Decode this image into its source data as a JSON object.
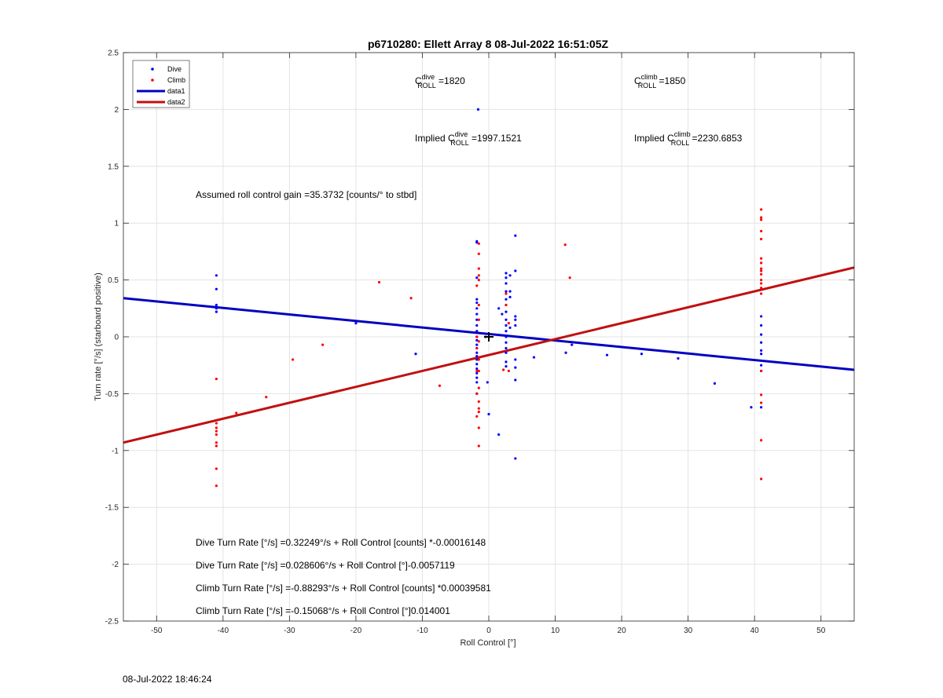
{
  "footer": {
    "timestamp": "08-Jul-2022 18:46:24"
  },
  "chart_data": {
    "type": "scatter",
    "title": "p6710280: Ellett Array 8 08-Jul-2022 16:51:05Z",
    "xlabel": "Roll Control [°]",
    "ylabel": "Turn rate [°/s] (starboard positive)",
    "xlim": [
      -55,
      55
    ],
    "ylim": [
      -2.5,
      2.5
    ],
    "xticks": [
      -50,
      -40,
      -30,
      -20,
      -10,
      0,
      10,
      20,
      30,
      40,
      50
    ],
    "yticks": [
      -2.5,
      -2,
      -1.5,
      -1,
      -0.5,
      0,
      0.5,
      1,
      1.5,
      2,
      2.5
    ],
    "grid": true,
    "legend_position": "top-left",
    "colors": {
      "dive": "#0000ff",
      "climb": "#ff0000",
      "data1": "#0000c0",
      "data2": "#c01010"
    },
    "legend": [
      {
        "label": "Dive",
        "kind": "point",
        "color": "#0000ff"
      },
      {
        "label": "Climb",
        "kind": "point",
        "color": "#ff0000"
      },
      {
        "label": "data1",
        "kind": "line",
        "color": "#0000c0"
      },
      {
        "label": "data2",
        "kind": "line",
        "color": "#c01010"
      }
    ],
    "series": [
      {
        "name": "Dive",
        "color": "#0000ff",
        "points": [
          [
            -41,
            0.54
          ],
          [
            -41,
            0.42
          ],
          [
            -41,
            0.25
          ],
          [
            -41,
            0.22
          ],
          [
            -41,
            0.28
          ],
          [
            -20,
            0.12
          ],
          [
            -11,
            -0.15
          ],
          [
            -1.8,
            0.84
          ],
          [
            -1.8,
            0.83
          ],
          [
            -1.8,
            0.52
          ],
          [
            -1.8,
            0.33
          ],
          [
            -1.8,
            0.3
          ],
          [
            -1.8,
            0.25
          ],
          [
            -1.8,
            0.2
          ],
          [
            -1.8,
            0.15
          ],
          [
            -1.8,
            0.1
          ],
          [
            -1.8,
            0.05
          ],
          [
            -1.8,
            0.0
          ],
          [
            -1.8,
            -0.03
          ],
          [
            -1.8,
            -0.07
          ],
          [
            -1.8,
            -0.1
          ],
          [
            -1.8,
            -0.14
          ],
          [
            -1.8,
            -0.17
          ],
          [
            -1.8,
            -0.2
          ],
          [
            -1.8,
            -0.24
          ],
          [
            -1.8,
            -0.28
          ],
          [
            -1.8,
            -0.32
          ],
          [
            -1.8,
            -0.36
          ],
          [
            -1.8,
            -0.4
          ],
          [
            -1.8,
            -0.5
          ],
          [
            -1.6,
            2.0
          ],
          [
            -0.5,
            0.0
          ],
          [
            -0.2,
            -0.4
          ],
          [
            0.0,
            -0.68
          ],
          [
            1.5,
            -0.86
          ],
          [
            1.5,
            0.25
          ],
          [
            2.0,
            0.2
          ],
          [
            2.6,
            0.56
          ],
          [
            2.6,
            0.52
          ],
          [
            2.6,
            0.47
          ],
          [
            2.6,
            0.4
          ],
          [
            2.6,
            0.33
          ],
          [
            2.6,
            0.28
          ],
          [
            2.6,
            0.22
          ],
          [
            2.6,
            0.15
          ],
          [
            2.6,
            0.1
          ],
          [
            2.6,
            0.05
          ],
          [
            2.6,
            0.0
          ],
          [
            2.6,
            -0.05
          ],
          [
            2.6,
            -0.1
          ],
          [
            2.6,
            -0.14
          ],
          [
            2.6,
            -0.22
          ],
          [
            2.6,
            -0.26
          ],
          [
            3.2,
            0.54
          ],
          [
            3.2,
            0.4
          ],
          [
            3.2,
            0.35
          ],
          [
            3.2,
            0.08
          ],
          [
            4.0,
            0.89
          ],
          [
            4.0,
            0.58
          ],
          [
            4.0,
            0.15
          ],
          [
            4.0,
            0.1
          ],
          [
            4.0,
            0.18
          ],
          [
            4.0,
            -0.2
          ],
          [
            4.0,
            -0.27
          ],
          [
            4.0,
            -0.38
          ],
          [
            4.0,
            -1.07
          ],
          [
            6.8,
            -0.18
          ],
          [
            11.6,
            -0.14
          ],
          [
            12.5,
            -0.07
          ],
          [
            17.8,
            -0.16
          ],
          [
            23.0,
            -0.15
          ],
          [
            28.5,
            -0.19
          ],
          [
            34.0,
            -0.41
          ],
          [
            39.5,
            -0.62
          ],
          [
            41,
            0.18
          ],
          [
            41,
            0.1
          ],
          [
            41,
            0.02
          ],
          [
            41,
            -0.05
          ],
          [
            41,
            -0.12
          ],
          [
            41,
            -0.15
          ],
          [
            41,
            -0.25
          ],
          [
            41,
            -0.3
          ],
          [
            41,
            -0.62
          ]
        ]
      },
      {
        "name": "Climb",
        "color": "#ff0000",
        "points": [
          [
            -41,
            -0.37
          ],
          [
            -41,
            -0.76
          ],
          [
            -41,
            -0.8
          ],
          [
            -41,
            -0.83
          ],
          [
            -41,
            -0.86
          ],
          [
            -41,
            -0.93
          ],
          [
            -41,
            -0.96
          ],
          [
            -41,
            -1.16
          ],
          [
            -41,
            -1.31
          ],
          [
            -38,
            -0.67
          ],
          [
            -33.5,
            -0.53
          ],
          [
            -29.5,
            -0.2
          ],
          [
            -25,
            -0.07
          ],
          [
            -16.5,
            0.48
          ],
          [
            -11.7,
            0.34
          ],
          [
            -7.4,
            -0.43
          ],
          [
            -1.8,
            0.45
          ],
          [
            -1.8,
            0.0
          ],
          [
            -1.8,
            -0.1
          ],
          [
            -1.8,
            -0.3
          ],
          [
            -1.8,
            -0.5
          ],
          [
            -1.8,
            -0.7
          ],
          [
            -1.5,
            0.82
          ],
          [
            -1.5,
            0.73
          ],
          [
            -1.5,
            0.6
          ],
          [
            -1.5,
            0.54
          ],
          [
            -1.5,
            0.5
          ],
          [
            -1.5,
            0.28
          ],
          [
            -1.5,
            0.15
          ],
          [
            -1.5,
            -0.04
          ],
          [
            -1.5,
            -0.2
          ],
          [
            -1.5,
            -0.3
          ],
          [
            -1.5,
            -0.45
          ],
          [
            -1.5,
            -0.57
          ],
          [
            -1.5,
            -0.63
          ],
          [
            -1.5,
            -0.66
          ],
          [
            -1.5,
            -0.8
          ],
          [
            -1.5,
            -0.96
          ],
          [
            2.2,
            -0.29
          ],
          [
            2.6,
            0.38
          ],
          [
            2.6,
            0.28
          ],
          [
            3.0,
            0.12
          ],
          [
            3.0,
            -0.3
          ],
          [
            11.5,
            0.81
          ],
          [
            12.2,
            0.52
          ],
          [
            41,
            1.12
          ],
          [
            41,
            1.05
          ],
          [
            41,
            1.03
          ],
          [
            41,
            0.93
          ],
          [
            41,
            0.86
          ],
          [
            41,
            0.69
          ],
          [
            41,
            0.65
          ],
          [
            41,
            0.6
          ],
          [
            41,
            0.58
          ],
          [
            41,
            0.55
          ],
          [
            41,
            0.5
          ],
          [
            41,
            0.47
          ],
          [
            41,
            0.43
          ],
          [
            41,
            0.38
          ],
          [
            41,
            -0.3
          ],
          [
            41,
            -0.51
          ],
          [
            41,
            -0.58
          ],
          [
            41,
            -0.91
          ],
          [
            41,
            -1.25
          ]
        ]
      },
      {
        "name": "data1",
        "type": "line",
        "color": "#0000c0",
        "x": [
          -55,
          55
        ],
        "y": [
          0.34,
          -0.29
        ]
      },
      {
        "name": "data2",
        "type": "line",
        "color": "#c01010",
        "x": [
          -55,
          55
        ],
        "y": [
          -0.93,
          0.61
        ]
      }
    ],
    "mean_marker": {
      "x": 0,
      "y": 0
    },
    "annotations": {
      "c_dive": {
        "pre": "C",
        "sup": "dive",
        "sub": "ROLL",
        "post": " =1820"
      },
      "c_climb": {
        "pre": "C",
        "sup": "climb",
        "sub": "ROLL",
        "post": " =1850"
      },
      "imp_dive": {
        "pre": "Implied C",
        "sup": "dive",
        "sub": "ROLL",
        "post": " =1997.1521"
      },
      "imp_climb": {
        "pre": "Implied C",
        "sup": "climb",
        "sub": "ROLL",
        "post": " =2230.6853"
      },
      "gain": "Assumed roll control gain =35.3732 [counts/° to stbd]",
      "fit1": "Dive Turn Rate [°/s] =0.32249°/s + Roll Control [counts] *-0.00016148",
      "fit2": "Dive Turn Rate [°/s] =0.028606°/s + Roll Control [°]-0.0057119",
      "fit3": "Climb Turn Rate [°/s] =-0.88293°/s + Roll Control [counts] *0.00039581",
      "fit4": "Climb Turn Rate [°/s] =-0.15068°/s + Roll Control [°]0.014001"
    }
  }
}
